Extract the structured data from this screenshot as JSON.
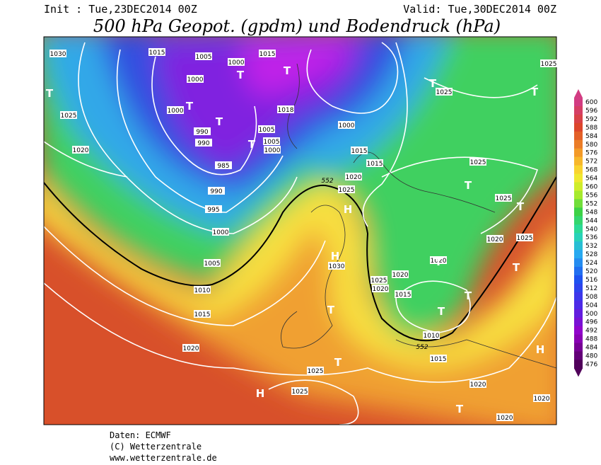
{
  "header": {
    "init": "Init : Tue,23DEC2014 00Z",
    "valid": "Valid: Tue,30DEC2014 00Z",
    "title": "500 hPa Geopot. (gpdm) und Bodendruck (hPa)"
  },
  "map": {
    "isobar_labels": [
      "1030",
      "1015",
      "1005",
      "1000",
      "1015",
      "1000",
      "1000",
      "990",
      "990",
      "985",
      "990",
      "995",
      "1000",
      "1005",
      "1010",
      "1015",
      "1020",
      "1025",
      "1020",
      "1018",
      "1005",
      "1005",
      "1000",
      "1000",
      "1015",
      "1015",
      "1020",
      "1025",
      "1025",
      "1025",
      "1025",
      "1025",
      "1020",
      "1020",
      "1020",
      "1025",
      "1030",
      "1020",
      "1015",
      "1010",
      "1015",
      "1020",
      "1025",
      "1025",
      "1020",
      "1020",
      "1025"
    ],
    "pressure_centers": [
      "T",
      "T",
      "T",
      "T",
      "T",
      "T",
      "T",
      "T",
      "T",
      "T",
      "T",
      "T",
      "T",
      "T",
      "T",
      "T",
      "H",
      "H",
      "H",
      "H",
      "T"
    ],
    "contour_labels": [
      "552",
      "552"
    ]
  },
  "legend": {
    "ticks": [
      600,
      596,
      592,
      588,
      584,
      580,
      576,
      572,
      568,
      564,
      560,
      556,
      552,
      548,
      544,
      540,
      536,
      532,
      528,
      524,
      520,
      516,
      512,
      508,
      504,
      500,
      496,
      492,
      488,
      484,
      480,
      476
    ]
  },
  "footer": {
    "source": "Daten: ECMWF",
    "copyright": "(C) Wetterzentrale",
    "url": "www.wetterzentrale.de"
  }
}
